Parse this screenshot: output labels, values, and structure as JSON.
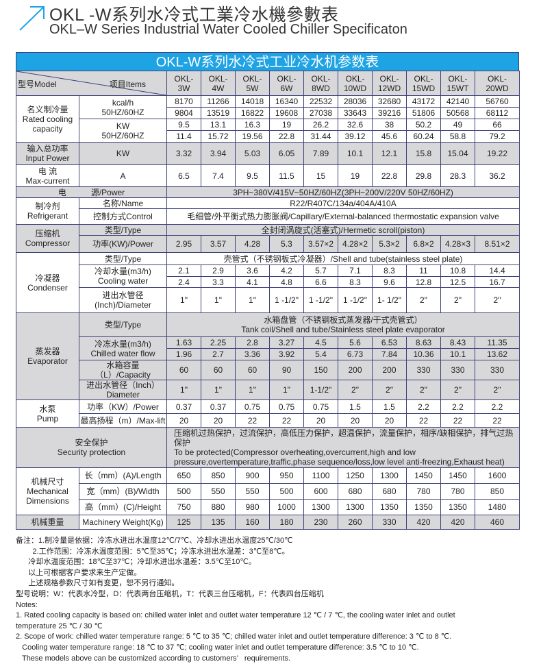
{
  "heading": {
    "cn": "OKL -W系列水冷式工業冷水機參數表",
    "en": "OKL–W Series Industrial Water Cooled Chiller Specificaton",
    "icon": "arrow-up-right-icon",
    "accent": "#1ea3e4"
  },
  "table": {
    "title": "OKL-W系列水冷式工业冷水机参数表",
    "header": {
      "model": "型号Model",
      "items": "项目Items"
    },
    "models": [
      "OKL-\n3W",
      "OKL-\n4W",
      "OKL-\n5W",
      "OKL-\n6W",
      "OKL-\n8WD",
      "OKL-\n10WD",
      "OKL-\n12WD",
      "OKL-\n15WD",
      "OKL-\n15WT",
      "OKL-\n20WD"
    ],
    "cooling": {
      "label": "名义制冷量\nRated cooling\ncapacity",
      "kcal_unit": "kcal/h\n50HZ/60HZ",
      "kcal_50": [
        "8170",
        "11266",
        "14018",
        "16340",
        "22532",
        "28036",
        "32680",
        "43172",
        "42140",
        "56760"
      ],
      "kcal_60": [
        "9804",
        "13519",
        "16822",
        "19608",
        "27038",
        "33643",
        "39216",
        "51806",
        "50568",
        "68112"
      ],
      "kw_unit": "KW\n50HZ/60HZ",
      "kw_50": [
        "9.5",
        "13.1",
        "16.3",
        "19",
        "26.2",
        "32.6",
        "38",
        "50.2",
        "49",
        "66"
      ],
      "kw_60": [
        "11.4",
        "15.72",
        "19.56",
        "22.8",
        "31.44",
        "39.12",
        "45.6",
        "60.24",
        "58.8",
        "79.2"
      ]
    },
    "input_power": {
      "label": "输入总功率\nInput Power",
      "unit": "KW",
      "values": [
        "3.32",
        "3.94",
        "5.03",
        "6.05",
        "7.89",
        "10.1",
        "12.1",
        "15.8",
        "15.04",
        "19.22"
      ]
    },
    "current": {
      "label": "电 流\nMax-current",
      "unit": "A",
      "values": [
        "6.5",
        "7.4",
        "9.5",
        "11.5",
        "15",
        "19",
        "22.8",
        "29.8",
        "28.3",
        "36.2"
      ]
    },
    "power_supply": {
      "label": "电　　　源/Power",
      "value": "3PH~380V/415V~50HZ/60HZ(3PH~200V/220V   50HZ/60HZ)"
    },
    "refrigerant": {
      "label": "制冷剂\nRefrigerant",
      "name_label": "名称/Name",
      "name": "R22/R407C/134a/404A/410A",
      "control_label": "控制方式Control",
      "control": "毛细管/外平衡式热力膨胀阀/Capillary/External-balanced thermostatic expansion valve"
    },
    "compressor": {
      "label": "压缩机\nCompressor",
      "type_label": "类型/Type",
      "type": "全封闭涡旋式(活塞式)/Hermetic scroll(piston)",
      "power_label": "功率(KW)/Power",
      "power": [
        "2.95",
        "3.57",
        "4.28",
        "5.3",
        "3.57×2",
        "4.28×2",
        "5.3×2",
        "6.8×2",
        "4.28×3",
        "8.51×2"
      ]
    },
    "condenser": {
      "label": "冷凝器\nCondenser",
      "type_label": "类型/Type",
      "type": "壳管式（不锈钢板式冷凝器）/Shell and tube(stainless steel plate)",
      "flow_label": "冷却水量(m3/h)\nCooling water",
      "flow_50": [
        "2.1",
        "2.9",
        "3.6",
        "4.2",
        "5.7",
        "7.1",
        "8.3",
        "11",
        "10.8",
        "14.4"
      ],
      "flow_60": [
        "2.4",
        "3.3",
        "4.1",
        "4.8",
        "6.6",
        "8.3",
        "9.6",
        "12.8",
        "12.5",
        "16.7"
      ],
      "diameter_label": "进出水管径\n(Inch)/Diameter",
      "diameter": [
        "1\"",
        "1\"",
        "1\"",
        "1 -1/2\"",
        "1 -1/2\"",
        "1 -1/2\"",
        "1- 1/2\"",
        "2\"",
        "2\"",
        "2\""
      ]
    },
    "evaporator": {
      "label": "蒸发器\nEvaporator",
      "type_label": "类型/Type",
      "type": "水箱盘管（不锈钢板式蒸发器/干式壳管式）\nTank coil/Shell and tube/Stainless steel plate evaporator",
      "flow_label": "冷冻水量(m3/h)\nChilled water flow",
      "flow_50": [
        "1.63",
        "2.25",
        "2.8",
        "3.27",
        "4.5",
        "5.6",
        "6.53",
        "8.63",
        "8.43",
        "11.35"
      ],
      "flow_60": [
        "1.96",
        "2.7",
        "3.36",
        "3.92",
        "5.4",
        "6.73",
        "7.84",
        "10.36",
        "10.1",
        "13.62"
      ],
      "capacity_label": "水箱容量（L）/Capacity",
      "capacity": [
        "60",
        "60",
        "60",
        "90",
        "150",
        "200",
        "200",
        "330",
        "330",
        "330"
      ],
      "diameter_label": "进出水管径（Inch）\nDiameter",
      "diameter": [
        "1\"",
        "1\"",
        "1\"",
        "1\"",
        "1-1/2\"",
        "2\"",
        "2\"",
        "2\"",
        "2\"",
        "2\""
      ]
    },
    "pump": {
      "label": "水泵\nPump",
      "power_label": "功率（KW）/Power",
      "power": [
        "0.37",
        "0.37",
        "0.75",
        "0.75",
        "0.75",
        "1.5",
        "1.5",
        "2.2",
        "2.2",
        "2.2"
      ],
      "lift_label": "最高扬程（m）/Max-lift",
      "lift": [
        "20",
        "20",
        "22",
        "22",
        "20",
        "20",
        "20",
        "22",
        "22",
        "22"
      ]
    },
    "security": {
      "label": "安全保护\nSecurity protection",
      "text": "压缩机过热保护，过流保护，高低压力保护，超温保护，流量保护，相序/缺相保护，排气过热保护\nTo be protected(Compressor overheating,overcurrent,high and low\npressure,overtemperature,traffic,phase sequence/loss,low level anti-freezing,Exhaust heat)"
    },
    "dimensions": {
      "label": "机械尺寸\nMechanical\nDimensions",
      "length_label": "长（mm）(A)/Length",
      "length": [
        "650",
        "850",
        "900",
        "950",
        "1100",
        "1250",
        "1300",
        "1450",
        "1450",
        "1600"
      ],
      "width_label": "宽（mm）(B)/Width",
      "width": [
        "500",
        "550",
        "550",
        "500",
        "600",
        "680",
        "680",
        "780",
        "780",
        "850"
      ],
      "height_label": "高（mm）(C)/Height",
      "height": [
        "750",
        "880",
        "980",
        "1000",
        "1300",
        "1300",
        "1350",
        "1350",
        "1350",
        "1480"
      ]
    },
    "weight": {
      "label": "机械重量",
      "sub_label": "Machinery Weight(Kg)",
      "values": [
        "125",
        "135",
        "160",
        "180",
        "230",
        "260",
        "330",
        "420",
        "420",
        "460"
      ]
    }
  },
  "notes": [
    "备注：1.制冷量是依据：冷冻水进出水温度12℃/7℃、冷却水进出水温度25℃/30℃",
    "        2.工作范围：冷冻水温度范围：5℃至35℃；冷冻水进出水温差：3℃至8℃。",
    "      冷却水温度范围：18℃至37℃；冷却水进出水温差：3.5℃至10℃。",
    "      以上可根据客户要求来生产定做。",
    "      上述规格参数尺寸如有变更，恕不另行通知。",
    "型号说明：W：代表水冷型，D：代表两台压缩机，T：代表三台压缩机，F：代表四台压缩机",
    "Notes:",
    "1. Rated cooling capacity is based on: chilled water inlet and outlet water temperature 12 ℃ / 7 ℃, the cooling water inlet and outlet",
    "temperature 25 ℃ / 30 ℃",
    "2. Scope of work: chilled water temperature range: 5 ℃ to 35 ℃; chilled water inlet and outlet temperature difference: 3 ℃ to 8 ℃.",
    "   Cooling water temperature range: 18 ℃ to 37 ℃; cooling water inlet and outlet temperature difference: 3.5 ℃ to 10 ℃.",
    "   These models above can be customized according to customers’   requirements."
  ]
}
